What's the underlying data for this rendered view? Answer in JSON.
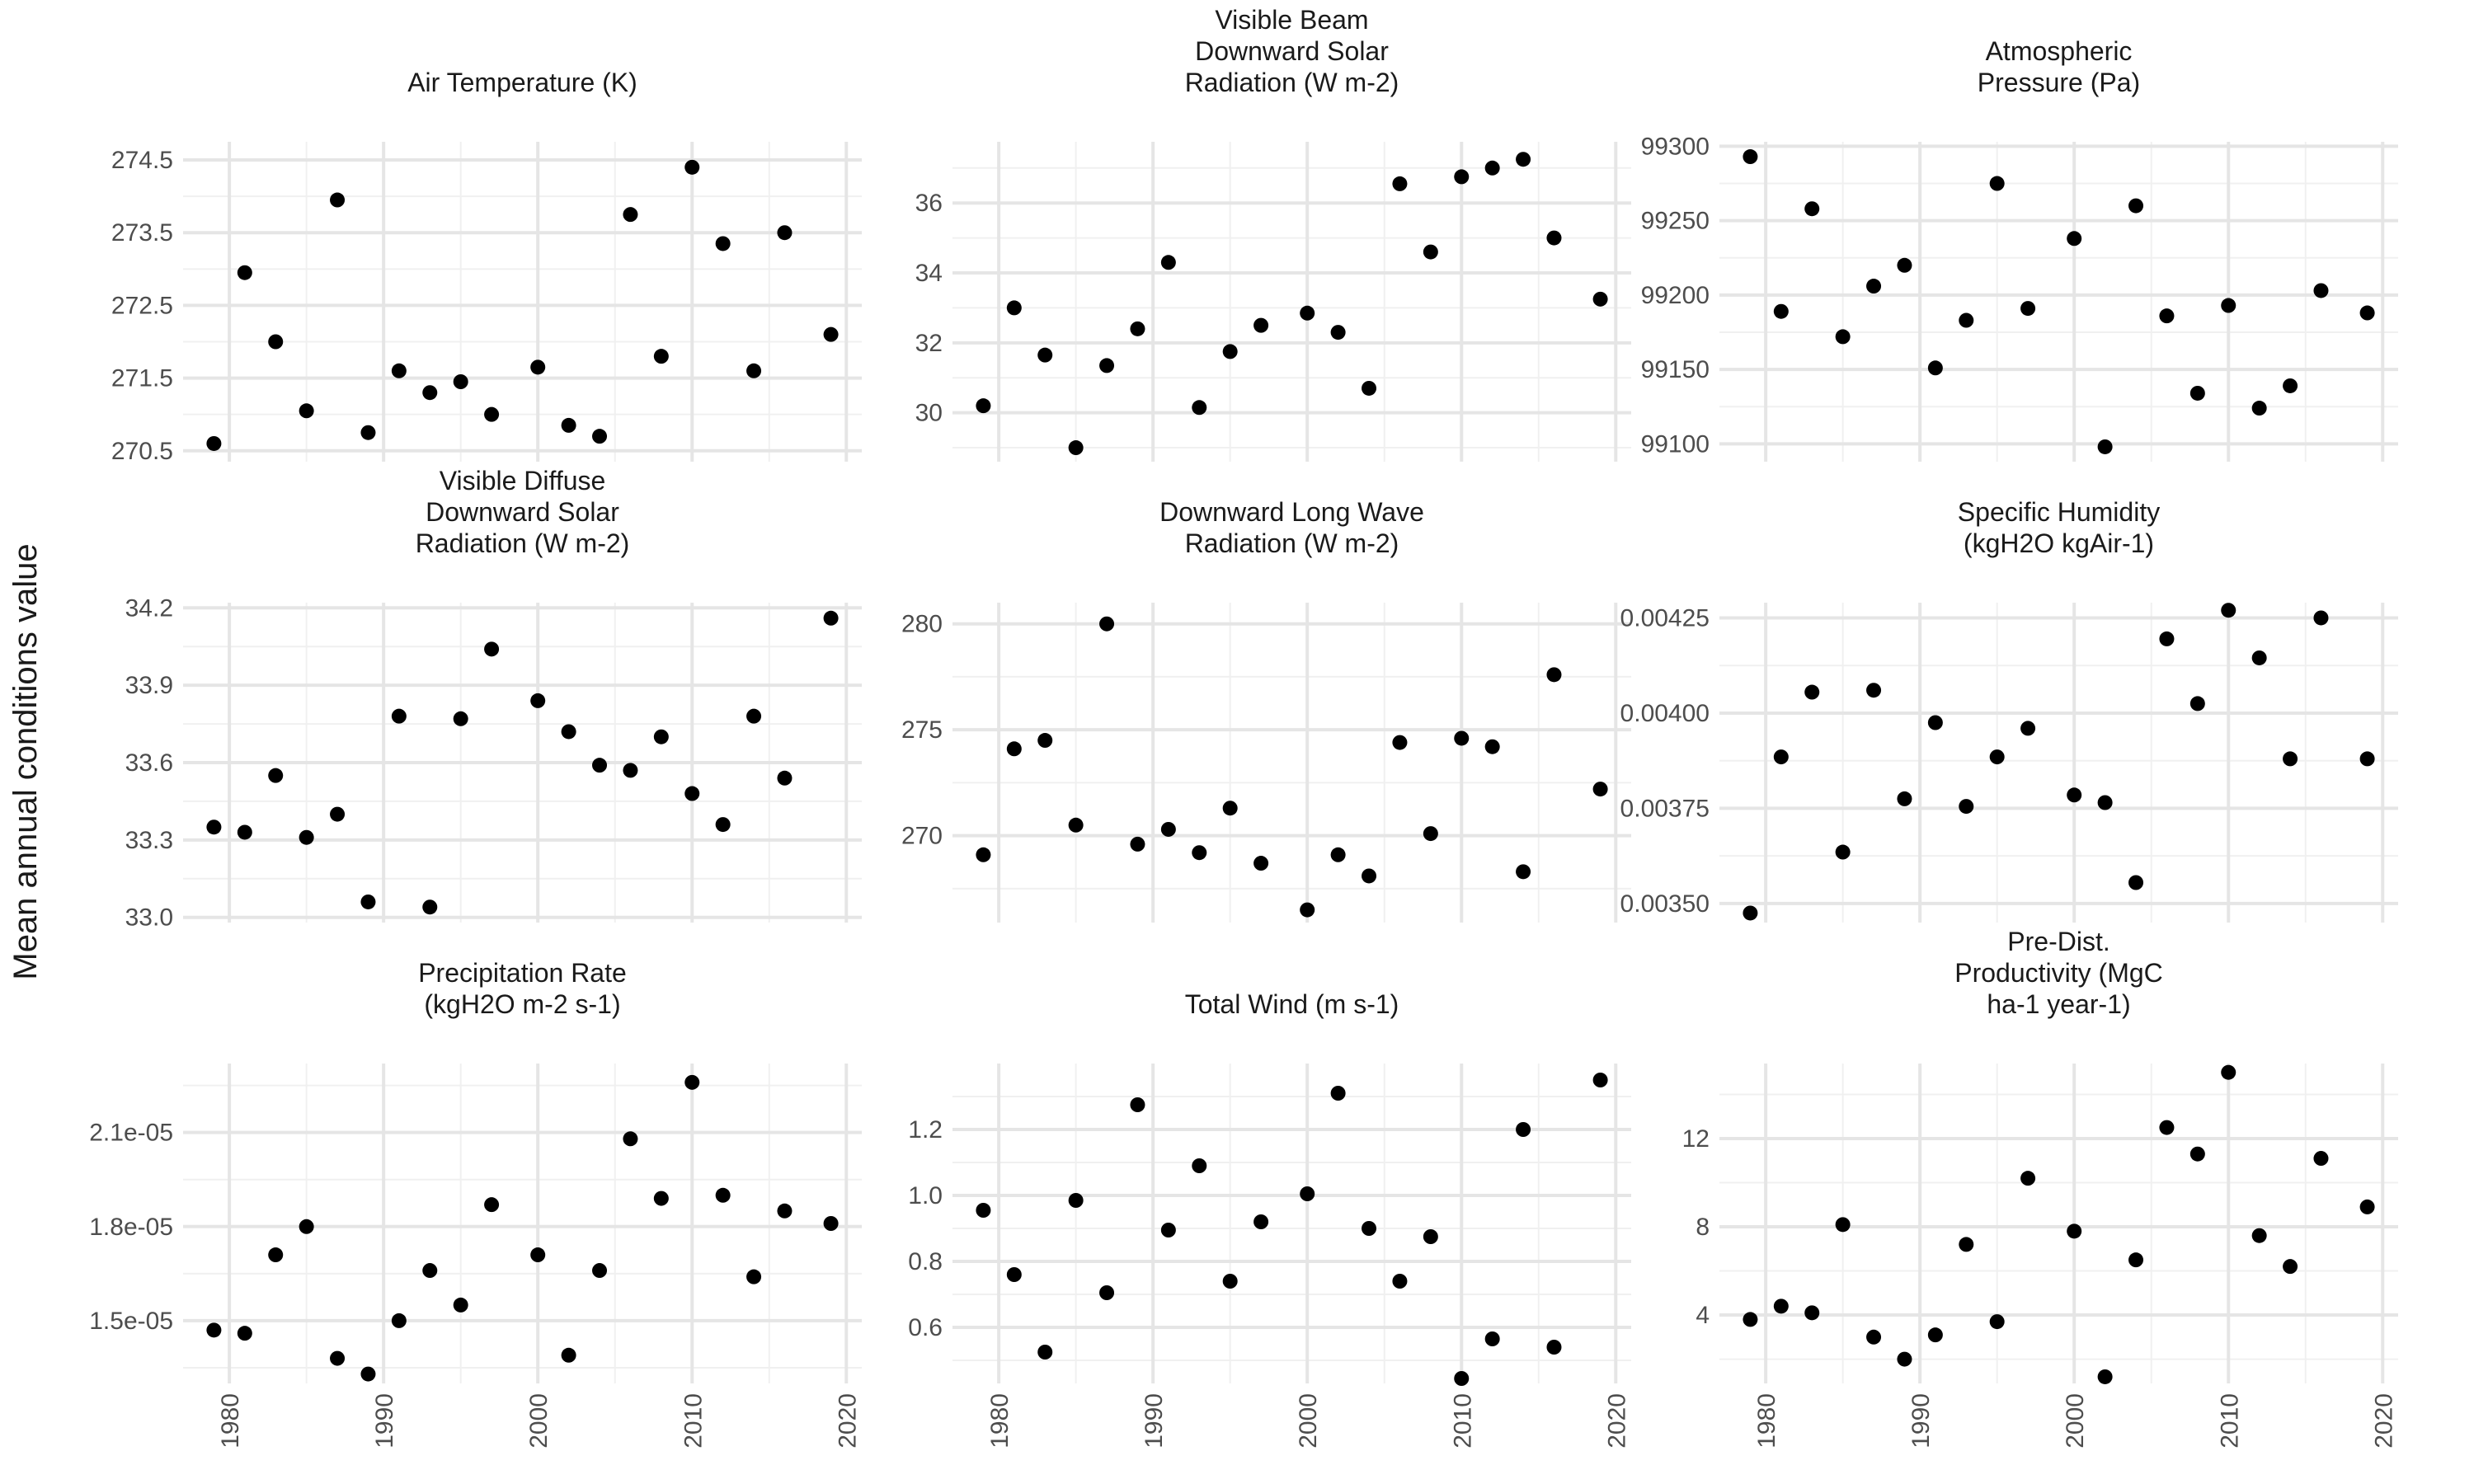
{
  "figure": {
    "ylabel": "Mean annual conditions value",
    "xlabel": ""
  },
  "colors": {
    "point": "#000000",
    "grid_major": "#e5e5e5",
    "grid_minor": "#f0f0f0",
    "background": "#ffffff"
  },
  "chart_data": [
    {
      "type": "scatter",
      "title_lines": [
        "Air Temperature (K)"
      ],
      "x": [
        1979,
        1981,
        1983,
        1985,
        1987,
        1989,
        1991,
        1993,
        1995,
        1997,
        2000,
        2002,
        2004,
        2006,
        2008,
        2010,
        2012,
        2014,
        2016,
        2019
      ],
      "y": [
        270.6,
        272.95,
        272.0,
        271.05,
        273.95,
        270.75,
        271.6,
        271.3,
        271.45,
        271.0,
        271.65,
        270.85,
        270.7,
        273.75,
        271.8,
        274.4,
        273.35,
        271.6,
        273.5,
        272.1
      ],
      "ylim": [
        270.35,
        274.75
      ],
      "yticks": [
        270.5,
        271.5,
        272.5,
        273.5,
        274.5
      ],
      "ytick_labels": [
        "270.5",
        "271.5",
        "272.5",
        "273.5",
        "274.5"
      ],
      "yminor": [
        271.0,
        272.0,
        273.0,
        274.0
      ],
      "show_x_labels": false
    },
    {
      "type": "scatter",
      "title_lines": [
        "Visible Beam",
        "Downward Solar",
        "Radiation (W m-2)"
      ],
      "x": [
        1979,
        1981,
        1983,
        1985,
        1987,
        1989,
        1991,
        1993,
        1995,
        1997,
        2000,
        2002,
        2004,
        2006,
        2008,
        2010,
        2012,
        2014,
        2016,
        2019
      ],
      "y": [
        30.2,
        33.0,
        31.65,
        29.0,
        31.35,
        32.4,
        34.3,
        30.15,
        31.75,
        32.5,
        32.85,
        32.3,
        30.7,
        36.55,
        34.6,
        36.75,
        37.0,
        37.25,
        35.0,
        33.25
      ],
      "ylim": [
        28.6,
        37.75
      ],
      "yticks": [
        30,
        32,
        34,
        36
      ],
      "ytick_labels": [
        "30",
        "32",
        "34",
        "36"
      ],
      "yminor": [
        29,
        31,
        33,
        35,
        37
      ],
      "show_x_labels": false
    },
    {
      "type": "scatter",
      "title_lines": [
        "Atmospheric",
        "Pressure (Pa)"
      ],
      "x": [
        1979,
        1981,
        1983,
        1985,
        1987,
        1989,
        1991,
        1993,
        1995,
        1997,
        2000,
        2002,
        2004,
        2006,
        2008,
        2010,
        2012,
        2014,
        2016,
        2019
      ],
      "y": [
        99293,
        99189,
        99258,
        99172,
        99206,
        99220,
        99151,
        99183,
        99275,
        99191,
        99238,
        99098,
        99260,
        99186,
        99134,
        99193,
        99124,
        99139,
        99203,
        99188
      ],
      "ylim": [
        99088,
        99303
      ],
      "yticks": [
        99100,
        99150,
        99200,
        99250,
        99300
      ],
      "ytick_labels": [
        "99100",
        "99150",
        "99200",
        "99250",
        "99300"
      ],
      "yminor": [
        99125,
        99175,
        99225,
        99275
      ],
      "show_x_labels": false
    },
    {
      "type": "scatter",
      "title_lines": [
        "Visible Diffuse",
        "Downward Solar",
        "Radiation (W m-2)"
      ],
      "x": [
        1979,
        1981,
        1983,
        1985,
        1987,
        1989,
        1991,
        1993,
        1995,
        1997,
        2000,
        2002,
        2004,
        2006,
        2008,
        2010,
        2012,
        2014,
        2016,
        2019
      ],
      "y": [
        33.35,
        33.33,
        33.55,
        33.31,
        33.4,
        33.06,
        33.78,
        33.04,
        33.77,
        34.04,
        33.84,
        33.72,
        33.59,
        33.57,
        33.7,
        33.48,
        33.36,
        33.78,
        33.54,
        34.16
      ],
      "ylim": [
        32.98,
        34.22
      ],
      "yticks": [
        33.0,
        33.3,
        33.6,
        33.9,
        34.2
      ],
      "ytick_labels": [
        "33.0",
        "33.3",
        "33.6",
        "33.9",
        "34.2"
      ],
      "yminor": [
        33.15,
        33.45,
        33.75,
        34.05
      ],
      "show_x_labels": false
    },
    {
      "type": "scatter",
      "title_lines": [
        "Downward Long Wave",
        "Radiation (W m-2)"
      ],
      "x": [
        1979,
        1981,
        1983,
        1985,
        1987,
        1989,
        1991,
        1993,
        1995,
        1997,
        2000,
        2002,
        2004,
        2006,
        2008,
        2010,
        2012,
        2014,
        2016,
        2019
      ],
      "y": [
        269.1,
        274.1,
        274.5,
        270.5,
        280.0,
        269.6,
        270.3,
        269.2,
        271.3,
        268.7,
        266.5,
        269.1,
        268.1,
        274.4,
        270.1,
        274.6,
        274.2,
        268.3,
        277.6,
        272.2
      ],
      "ylim": [
        265.9,
        281.0
      ],
      "yticks": [
        270,
        275,
        280
      ],
      "ytick_labels": [
        "270",
        "275",
        "280"
      ],
      "yminor": [
        267.5,
        272.5,
        277.5
      ],
      "show_x_labels": false
    },
    {
      "type": "scatter",
      "title_lines": [
        "Specific Humidity",
        "(kgH2O kgAir-1)"
      ],
      "x": [
        1979,
        1981,
        1983,
        1985,
        1987,
        1989,
        1991,
        1993,
        1995,
        1997,
        2000,
        2002,
        2004,
        2006,
        2008,
        2010,
        2012,
        2014,
        2016,
        2019
      ],
      "y": [
        0.003475,
        0.003885,
        0.004055,
        0.003635,
        0.00406,
        0.003775,
        0.003975,
        0.003755,
        0.003885,
        0.00396,
        0.003785,
        0.003765,
        0.003555,
        0.004195,
        0.004025,
        0.00427,
        0.004145,
        0.00388,
        0.00425,
        0.00388
      ],
      "ylim": [
        0.00345,
        0.00429
      ],
      "yticks": [
        0.0035,
        0.00375,
        0.004,
        0.00425
      ],
      "ytick_labels": [
        "0.00350",
        "0.00375",
        "0.00400",
        "0.00425"
      ],
      "yminor": [
        0.003625,
        0.003875,
        0.004125
      ],
      "show_x_labels": false
    },
    {
      "type": "scatter",
      "title_lines": [
        "Precipitation Rate",
        "(kgH2O m-2 s-1)"
      ],
      "x": [
        1979,
        1981,
        1983,
        1985,
        1987,
        1989,
        1991,
        1993,
        1995,
        1997,
        2000,
        2002,
        2004,
        2006,
        2008,
        2010,
        2012,
        2014,
        2016,
        2019
      ],
      "y": [
        1.47e-05,
        1.46e-05,
        1.71e-05,
        1.8e-05,
        1.38e-05,
        1.33e-05,
        1.5e-05,
        1.66e-05,
        1.55e-05,
        1.87e-05,
        1.71e-05,
        1.39e-05,
        1.66e-05,
        2.08e-05,
        1.89e-05,
        2.26e-05,
        1.9e-05,
        1.64e-05,
        1.85e-05,
        1.81e-05
      ],
      "ylim": [
        1.3e-05,
        2.32e-05
      ],
      "yticks": [
        1.5e-05,
        1.8e-05,
        2.1e-05
      ],
      "ytick_labels": [
        "1.5e-05",
        "1.8e-05",
        "2.1e-05"
      ],
      "yminor": [
        1.35e-05,
        1.65e-05,
        1.95e-05,
        2.25e-05
      ],
      "show_x_labels": true
    },
    {
      "type": "scatter",
      "title_lines": [
        "Total Wind (m s-1)"
      ],
      "x": [
        1979,
        1981,
        1983,
        1985,
        1987,
        1989,
        1991,
        1993,
        1995,
        1997,
        2000,
        2002,
        2004,
        2006,
        2008,
        2010,
        2012,
        2014,
        2016,
        2019
      ],
      "y": [
        0.955,
        0.76,
        0.525,
        0.985,
        0.705,
        1.275,
        0.895,
        1.09,
        0.74,
        0.92,
        1.005,
        1.31,
        0.9,
        0.74,
        0.875,
        0.445,
        0.565,
        1.2,
        0.54,
        1.35
      ],
      "ylim": [
        0.43,
        1.4
      ],
      "yticks": [
        0.6,
        0.8,
        1.0,
        1.2
      ],
      "ytick_labels": [
        "0.6",
        "0.8",
        "1.0",
        "1.2"
      ],
      "yminor": [
        0.5,
        0.7,
        0.9,
        1.1,
        1.3
      ],
      "show_x_labels": true
    },
    {
      "type": "scatter",
      "title_lines": [
        "Pre-Dist.",
        "Productivity (MgC",
        "ha-1 year-1)"
      ],
      "x": [
        1979,
        1981,
        1983,
        1985,
        1987,
        1989,
        1991,
        1993,
        1995,
        1997,
        2000,
        2002,
        2004,
        2006,
        2008,
        2010,
        2012,
        2014,
        2016,
        2019
      ],
      "y": [
        3.8,
        4.4,
        4.1,
        8.1,
        3.0,
        2.0,
        3.1,
        7.2,
        3.7,
        10.2,
        7.8,
        1.2,
        6.5,
        12.5,
        11.3,
        15.0,
        7.6,
        6.2,
        11.1,
        8.9
      ],
      "ylim": [
        0.9,
        15.4
      ],
      "yticks": [
        4,
        8,
        12
      ],
      "ytick_labels": [
        "4",
        "8",
        "12"
      ],
      "yminor": [
        2,
        6,
        10,
        14
      ],
      "show_x_labels": true
    }
  ],
  "x_axis": {
    "xlim": [
      1977,
      2021
    ],
    "ticks": [
      1980,
      1990,
      2000,
      2010,
      2020
    ],
    "tick_labels": [
      "1980",
      "1990",
      "2000",
      "2010",
      "2020"
    ],
    "minor": [
      1985,
      1995,
      2005,
      2015
    ]
  }
}
